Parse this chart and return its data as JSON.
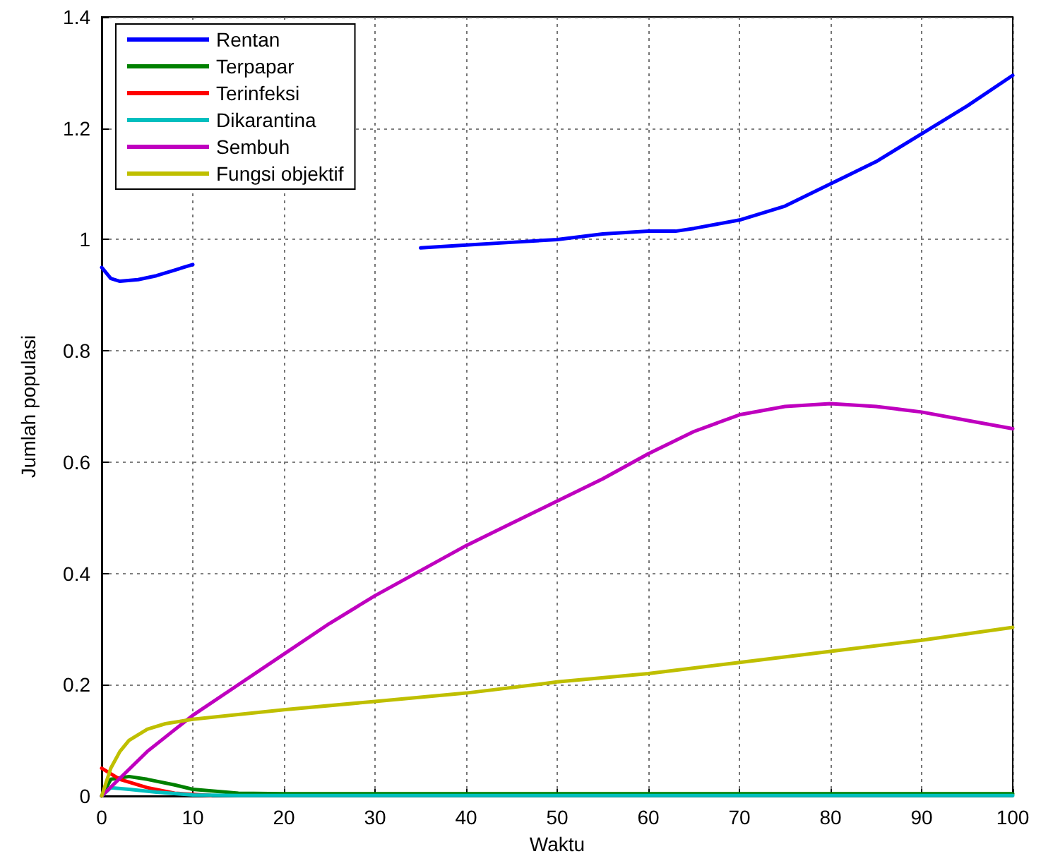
{
  "chart_data": {
    "type": "line",
    "xlabel": "Waktu",
    "ylabel": "Jumlah populasi",
    "xlim": [
      0,
      100
    ],
    "xticks": [
      0,
      10,
      20,
      30,
      40,
      50,
      60,
      70,
      80,
      90,
      100
    ],
    "ylim": [
      0,
      1.4
    ],
    "yticks": [
      0,
      0.2,
      0.4,
      0.6,
      0.8,
      1,
      1.2,
      1.4
    ],
    "grid": true,
    "legend": "top left",
    "marker": "none",
    "line_style": "solid",
    "series": [
      {
        "name": "Rentan",
        "color": "#0000ff",
        "x": [
          0,
          1,
          2,
          4,
          6,
          8,
          10,
          20,
          35,
          40,
          45,
          50,
          55,
          60,
          63,
          65,
          70,
          75,
          80,
          85,
          90,
          95,
          100
        ],
        "values": [
          0.95,
          0.93,
          0.925,
          0.928,
          0.935,
          0.945,
          0.955,
          null,
          0.985,
          0.99,
          0.995,
          1.0,
          1.01,
          1.015,
          1.015,
          1.02,
          1.035,
          1.06,
          1.1,
          1.14,
          1.19,
          1.24,
          1.295
        ]
      },
      {
        "name": "Terpapar",
        "color": "#008000",
        "x": [
          0,
          1,
          3,
          5,
          8,
          10,
          15,
          20,
          100
        ],
        "values": [
          0,
          0.03,
          0.035,
          0.03,
          0.02,
          0.012,
          0.005,
          0.004,
          0.004
        ]
      },
      {
        "name": "Terinfeksi",
        "color": "#ff0000",
        "x": [
          0,
          2,
          5,
          8,
          12
        ],
        "values": [
          0.05,
          0.03,
          0.015,
          0.005,
          0.001
        ]
      },
      {
        "name": "Dikarantina",
        "color": "#00bfbf",
        "x": [
          0,
          1,
          3,
          6,
          10,
          15,
          100
        ],
        "values": [
          0,
          0.015,
          0.012,
          0.007,
          0.002,
          0.001,
          0.001
        ]
      },
      {
        "name": "Sembuh",
        "color": "#bf00bf",
        "x": [
          0,
          5,
          10,
          15,
          20,
          25,
          30,
          35,
          40,
          45,
          50,
          55,
          60,
          65,
          70,
          75,
          80,
          85,
          90,
          95,
          100
        ],
        "values": [
          0,
          0.08,
          0.145,
          0.2,
          0.255,
          0.31,
          0.36,
          0.405,
          0.45,
          0.49,
          0.53,
          0.57,
          0.615,
          0.655,
          0.685,
          0.7,
          0.705,
          0.7,
          0.69,
          0.675,
          0.66
        ]
      },
      {
        "name": "Fungsi objektif",
        "color": "#bfbf00",
        "x": [
          0,
          1,
          2,
          3,
          5,
          7,
          10,
          20,
          30,
          40,
          50,
          60,
          70,
          80,
          90,
          100
        ],
        "values": [
          0,
          0.05,
          0.08,
          0.1,
          0.12,
          0.13,
          0.138,
          0.155,
          0.17,
          0.185,
          0.205,
          0.22,
          0.24,
          0.26,
          0.28,
          0.303
        ]
      }
    ]
  }
}
